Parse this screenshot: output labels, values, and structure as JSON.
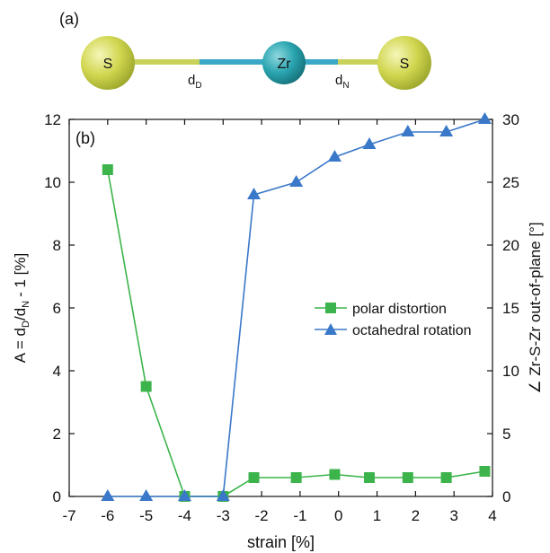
{
  "panel_a": {
    "label": "(a)",
    "atoms": [
      {
        "symbol": "S"
      },
      {
        "symbol": "Zr"
      },
      {
        "symbol": "S"
      }
    ],
    "bond_labels": {
      "left": {
        "main": "d",
        "sub": "D"
      },
      "right": {
        "main": "d",
        "sub": "N"
      }
    },
    "colors": {
      "sulfur": "#d1d64f",
      "zirconium": "#2aa5b0",
      "bond_yellow": "#c8d25a",
      "bond_teal": "#3aa8c6"
    }
  },
  "chart_data": {
    "type": "line",
    "panel_label": "(b)",
    "xlabel": "strain [%]",
    "ylabel_left": {
      "pre": "A = d",
      "sub1": "D",
      "mid": "/d",
      "sub2": "N",
      "post": "- 1 [%]"
    },
    "ylabel_right": "∠ Zr-S-Zr out-of-plane [°]",
    "xlim": [
      -7,
      4
    ],
    "ylim_left": [
      0,
      12
    ],
    "ylim_right": [
      0,
      30
    ],
    "xticks": [
      -7,
      -6,
      -5,
      -4,
      -3,
      -2,
      -1,
      0,
      1,
      2,
      3,
      4
    ],
    "yticks_left": [
      0,
      2,
      4,
      6,
      8,
      10,
      12
    ],
    "yticks_right": [
      0,
      5,
      10,
      15,
      20,
      25,
      30
    ],
    "grid": false,
    "legend_position": "center-right",
    "series": [
      {
        "name": "polar distortion",
        "axis": "left",
        "marker": "square",
        "color": "#3cb44b",
        "x": [
          -6,
          -5,
          -4,
          -3,
          -2.2,
          -1.1,
          -0.1,
          0.8,
          1.8,
          2.8,
          3.8
        ],
        "y": [
          10.4,
          3.5,
          0,
          0,
          0.6,
          0.6,
          0.7,
          0.6,
          0.6,
          0.6,
          0.8
        ]
      },
      {
        "name": "octahedral rotation",
        "axis": "right",
        "marker": "triangle",
        "color": "#3a78c9",
        "x": [
          -6,
          -5,
          -4,
          -3,
          -2.2,
          -1.1,
          -0.1,
          0.8,
          1.8,
          2.8,
          3.8
        ],
        "y": [
          0,
          0,
          0,
          0,
          24,
          25,
          27,
          28,
          29,
          29,
          30
        ]
      }
    ]
  }
}
